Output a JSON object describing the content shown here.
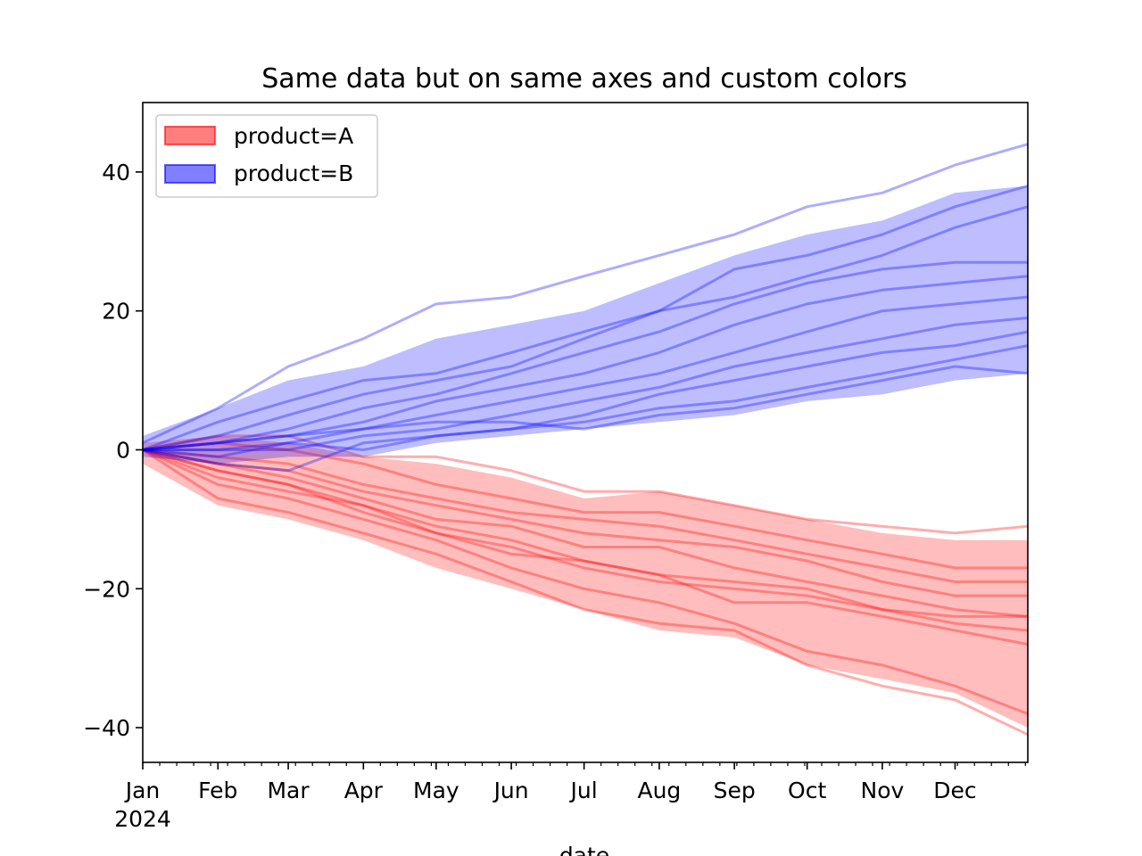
{
  "chart_data": {
    "type": "line",
    "title": "Same data but on same axes and custom colors",
    "xlabel": "date",
    "ylabel": "",
    "x_range": [
      "2024-01-01",
      "2024-12-31"
    ],
    "ylim": [
      -45,
      50
    ],
    "y_ticks": [
      {
        "value": 40,
        "label": "40"
      },
      {
        "value": 20,
        "label": "20"
      },
      {
        "value": 0,
        "label": "0"
      },
      {
        "value": -20,
        "label": "−20"
      },
      {
        "value": -40,
        "label": "−40"
      }
    ],
    "x_ticks": [
      {
        "date": "2024-01-01",
        "label": "Jan"
      },
      {
        "date": "2024-02-01",
        "label": "Feb"
      },
      {
        "date": "2024-03-01",
        "label": "Mar"
      },
      {
        "date": "2024-04-01",
        "label": "Apr"
      },
      {
        "date": "2024-05-01",
        "label": "May"
      },
      {
        "date": "2024-06-01",
        "label": "Jun"
      },
      {
        "date": "2024-07-01",
        "label": "Jul"
      },
      {
        "date": "2024-08-01",
        "label": "Aug"
      },
      {
        "date": "2024-09-01",
        "label": "Sep"
      },
      {
        "date": "2024-10-01",
        "label": "Oct"
      },
      {
        "date": "2024-11-01",
        "label": "Nov"
      },
      {
        "date": "2024-12-01",
        "label": "Dec"
      }
    ],
    "x_year_label": "2024",
    "legend": {
      "placement": "upper-left",
      "entries": [
        {
          "label": "product=A",
          "color": "#ff0000"
        },
        {
          "label": "product=B",
          "color": "#0000ff"
        }
      ]
    },
    "grid": false,
    "series": [
      {
        "name": "product=A",
        "color": "#ff0000",
        "band": {
          "x": [
            "2024-01-01",
            "2024-02-01",
            "2024-03-01",
            "2024-04-01",
            "2024-05-01",
            "2024-06-01",
            "2024-07-01",
            "2024-08-01",
            "2024-09-01",
            "2024-10-01",
            "2024-11-01",
            "2024-12-01",
            "2024-12-31"
          ],
          "lower": [
            -2,
            -8,
            -10,
            -13,
            -17,
            -20,
            -23,
            -26,
            -27,
            -31,
            -33,
            -35,
            -40
          ],
          "upper": [
            1,
            2,
            1,
            -1,
            -2,
            -4,
            -7,
            -6,
            -8,
            -10,
            -12,
            -13,
            -13
          ]
        },
        "lines": [
          {
            "x": [
              "2024-01-01",
              "2024-02-01",
              "2024-03-01",
              "2024-04-01",
              "2024-05-01",
              "2024-06-01",
              "2024-07-01",
              "2024-08-01",
              "2024-09-01",
              "2024-10-01",
              "2024-11-01",
              "2024-12-01",
              "2024-12-31"
            ],
            "y": [
              0,
              -7,
              -9,
              -12,
              -15,
              -19,
              -23,
              -25,
              -26,
              -31,
              -34,
              -36,
              -41
            ]
          },
          {
            "x": [
              "2024-01-01",
              "2024-02-01",
              "2024-03-01",
              "2024-04-01",
              "2024-05-01",
              "2024-06-01",
              "2024-07-01",
              "2024-08-01",
              "2024-09-01",
              "2024-10-01",
              "2024-11-01",
              "2024-12-01",
              "2024-12-31"
            ],
            "y": [
              0,
              -5,
              -7,
              -10,
              -13,
              -17,
              -20,
              -22,
              -25,
              -29,
              -31,
              -34,
              -38
            ]
          },
          {
            "x": [
              "2024-01-01",
              "2024-02-01",
              "2024-03-01",
              "2024-04-01",
              "2024-05-01",
              "2024-06-01",
              "2024-07-01",
              "2024-08-01",
              "2024-09-01",
              "2024-10-01",
              "2024-11-01",
              "2024-12-01",
              "2024-12-31"
            ],
            "y": [
              0,
              -4,
              -6,
              -8,
              -12,
              -15,
              -16,
              -18,
              -22,
              -22,
              -24,
              -26,
              -28
            ]
          },
          {
            "x": [
              "2024-01-01",
              "2024-02-01",
              "2024-03-01",
              "2024-04-01",
              "2024-05-01",
              "2024-06-01",
              "2024-07-01",
              "2024-08-01",
              "2024-09-01",
              "2024-10-01",
              "2024-11-01",
              "2024-12-01",
              "2024-12-31"
            ],
            "y": [
              0,
              -3,
              -5,
              -8,
              -11,
              -13,
              -16,
              -18,
              -19,
              -20,
              -23,
              -25,
              -26
            ]
          },
          {
            "x": [
              "2024-01-01",
              "2024-02-01",
              "2024-03-01",
              "2024-04-01",
              "2024-05-01",
              "2024-06-01",
              "2024-07-01",
              "2024-08-01",
              "2024-09-01",
              "2024-10-01",
              "2024-11-01",
              "2024-12-01",
              "2024-12-31"
            ],
            "y": [
              0,
              -2,
              -4,
              -7,
              -10,
              -11,
              -14,
              -14,
              -17,
              -19,
              -21,
              -23,
              -24
            ]
          },
          {
            "x": [
              "2024-01-01",
              "2024-02-01",
              "2024-03-01",
              "2024-04-01",
              "2024-05-01",
              "2024-06-01",
              "2024-07-01",
              "2024-08-01",
              "2024-09-01",
              "2024-10-01",
              "2024-11-01",
              "2024-12-01",
              "2024-12-31"
            ],
            "y": [
              0,
              -2,
              -3,
              -6,
              -8,
              -10,
              -12,
              -13,
              -14,
              -16,
              -19,
              -21,
              -21
            ]
          },
          {
            "x": [
              "2024-01-01",
              "2024-02-01",
              "2024-03-01",
              "2024-04-01",
              "2024-05-01",
              "2024-06-01",
              "2024-07-01",
              "2024-08-01",
              "2024-09-01",
              "2024-10-01",
              "2024-11-01",
              "2024-12-01",
              "2024-12-31"
            ],
            "y": [
              0,
              -1,
              -2,
              -5,
              -7,
              -9,
              -10,
              -11,
              -13,
              -15,
              -17,
              -19,
              -19
            ]
          },
          {
            "x": [
              "2024-01-01",
              "2024-02-01",
              "2024-03-01",
              "2024-04-01",
              "2024-05-01",
              "2024-06-01",
              "2024-07-01",
              "2024-08-01",
              "2024-09-01",
              "2024-10-01",
              "2024-11-01",
              "2024-12-01",
              "2024-12-31"
            ],
            "y": [
              0,
              1,
              0,
              -2,
              -5,
              -7,
              -9,
              -9,
              -11,
              -13,
              -15,
              -17,
              -17
            ]
          },
          {
            "x": [
              "2024-01-01",
              "2024-02-01",
              "2024-03-01",
              "2024-04-01",
              "2024-05-01",
              "2024-06-01",
              "2024-07-01",
              "2024-08-01",
              "2024-09-01",
              "2024-10-01",
              "2024-11-01",
              "2024-12-01",
              "2024-12-31"
            ],
            "y": [
              0,
              2,
              2,
              -1,
              -1,
              -3,
              -6,
              -6,
              -8,
              -10,
              -11,
              -12,
              -11
            ]
          },
          {
            "x": [
              "2024-01-01",
              "2024-02-01",
              "2024-03-01",
              "2024-04-01",
              "2024-05-01",
              "2024-06-01",
              "2024-07-01",
              "2024-08-01",
              "2024-09-01",
              "2024-10-01",
              "2024-11-01",
              "2024-12-01",
              "2024-12-31"
            ],
            "y": [
              0,
              -3,
              -5,
              -9,
              -12,
              -14,
              -17,
              -19,
              -20,
              -21,
              -23,
              -24,
              -24
            ]
          }
        ]
      },
      {
        "name": "product=B",
        "color": "#0000ff",
        "band": {
          "x": [
            "2024-01-01",
            "2024-02-01",
            "2024-03-01",
            "2024-04-01",
            "2024-05-01",
            "2024-06-01",
            "2024-07-01",
            "2024-08-01",
            "2024-09-01",
            "2024-10-01",
            "2024-11-01",
            "2024-12-01",
            "2024-12-31"
          ],
          "lower": [
            -1,
            -2,
            -1,
            -1,
            1,
            2,
            3,
            4,
            5,
            7,
            8,
            10,
            11
          ],
          "upper": [
            2,
            6,
            10,
            12,
            16,
            18,
            20,
            24,
            28,
            31,
            33,
            37,
            38
          ]
        },
        "lines": [
          {
            "x": [
              "2024-01-01",
              "2024-02-01",
              "2024-03-01",
              "2024-04-01",
              "2024-05-01",
              "2024-06-01",
              "2024-07-01",
              "2024-08-01",
              "2024-09-01",
              "2024-10-01",
              "2024-11-01",
              "2024-12-01",
              "2024-12-31"
            ],
            "y": [
              1,
              6,
              12,
              16,
              21,
              22,
              25,
              28,
              31,
              35,
              37,
              41,
              44
            ]
          },
          {
            "x": [
              "2024-01-01",
              "2024-02-01",
              "2024-03-01",
              "2024-04-01",
              "2024-05-01",
              "2024-06-01",
              "2024-07-01",
              "2024-08-01",
              "2024-09-01",
              "2024-10-01",
              "2024-11-01",
              "2024-12-01",
              "2024-12-31"
            ],
            "y": [
              0,
              4,
              7,
              10,
              11,
              14,
              17,
              20,
              26,
              28,
              31,
              35,
              38
            ]
          },
          {
            "x": [
              "2024-01-01",
              "2024-02-01",
              "2024-03-01",
              "2024-04-01",
              "2024-05-01",
              "2024-06-01",
              "2024-07-01",
              "2024-08-01",
              "2024-09-01",
              "2024-10-01",
              "2024-11-01",
              "2024-12-01",
              "2024-12-31"
            ],
            "y": [
              0,
              2,
              5,
              8,
              10,
              12,
              16,
              20,
              22,
              25,
              28,
              32,
              35
            ]
          },
          {
            "x": [
              "2024-01-01",
              "2024-02-01",
              "2024-03-01",
              "2024-04-01",
              "2024-05-01",
              "2024-06-01",
              "2024-07-01",
              "2024-08-01",
              "2024-09-01",
              "2024-10-01",
              "2024-11-01",
              "2024-12-01",
              "2024-12-31"
            ],
            "y": [
              0,
              1,
              3,
              6,
              8,
              11,
              14,
              17,
              21,
              24,
              26,
              27,
              27
            ]
          },
          {
            "x": [
              "2024-01-01",
              "2024-02-01",
              "2024-03-01",
              "2024-04-01",
              "2024-05-01",
              "2024-06-01",
              "2024-07-01",
              "2024-08-01",
              "2024-09-01",
              "2024-10-01",
              "2024-11-01",
              "2024-12-01",
              "2024-12-31"
            ],
            "y": [
              0,
              1,
              2,
              4,
              7,
              9,
              11,
              14,
              18,
              21,
              23,
              24,
              25
            ]
          },
          {
            "x": [
              "2024-01-01",
              "2024-02-01",
              "2024-03-01",
              "2024-04-01",
              "2024-05-01",
              "2024-06-01",
              "2024-07-01",
              "2024-08-01",
              "2024-09-01",
              "2024-10-01",
              "2024-11-01",
              "2024-12-01",
              "2024-12-31"
            ],
            "y": [
              0,
              -1,
              1,
              3,
              5,
              7,
              9,
              11,
              14,
              17,
              20,
              21,
              22
            ]
          },
          {
            "x": [
              "2024-01-01",
              "2024-02-01",
              "2024-03-01",
              "2024-04-01",
              "2024-05-01",
              "2024-06-01",
              "2024-07-01",
              "2024-08-01",
              "2024-09-01",
              "2024-10-01",
              "2024-11-01",
              "2024-12-01",
              "2024-12-31"
            ],
            "y": [
              0,
              0,
              0,
              2,
              3,
              5,
              7,
              9,
              12,
              14,
              16,
              18,
              19
            ]
          },
          {
            "x": [
              "2024-01-01",
              "2024-02-01",
              "2024-03-01",
              "2024-04-01",
              "2024-05-01",
              "2024-06-01",
              "2024-07-01",
              "2024-08-01",
              "2024-09-01",
              "2024-10-01",
              "2024-11-01",
              "2024-12-01",
              "2024-12-31"
            ],
            "y": [
              0,
              -2,
              -3,
              1,
              2,
              3,
              5,
              8,
              10,
              12,
              14,
              15,
              17
            ]
          },
          {
            "x": [
              "2024-01-01",
              "2024-02-01",
              "2024-03-01",
              "2024-04-01",
              "2024-05-01",
              "2024-06-01",
              "2024-07-01",
              "2024-08-01",
              "2024-09-01",
              "2024-10-01",
              "2024-11-01",
              "2024-12-01",
              "2024-12-31"
            ],
            "y": [
              0,
              0,
              1,
              0,
              2,
              3,
              4,
              6,
              7,
              9,
              11,
              13,
              15
            ]
          },
          {
            "x": [
              "2024-01-01",
              "2024-02-01",
              "2024-03-01",
              "2024-04-01",
              "2024-05-01",
              "2024-06-01",
              "2024-07-01",
              "2024-08-01",
              "2024-09-01",
              "2024-10-01",
              "2024-11-01",
              "2024-12-01",
              "2024-12-31"
            ],
            "y": [
              0,
              1,
              2,
              3,
              4,
              4,
              3,
              5,
              6,
              8,
              10,
              12,
              11
            ]
          }
        ]
      }
    ]
  }
}
